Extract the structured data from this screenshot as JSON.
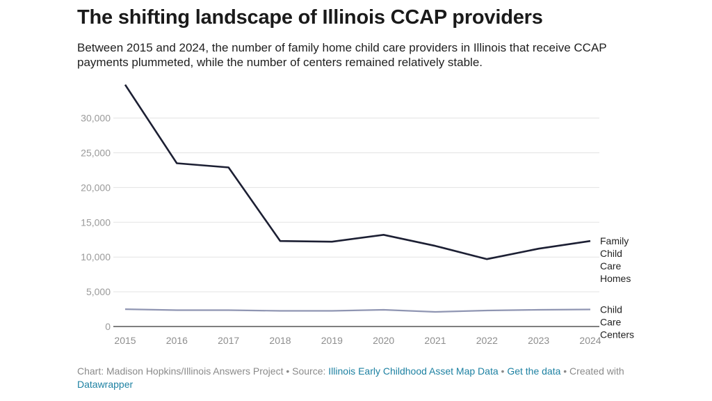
{
  "chart_data": {
    "type": "line",
    "title": "The shifting landscape of Illinois CCAP providers",
    "subtitle": "Between 2015 and 2024, the number of family home child care providers in Illinois that receive CCAP payments plummeted, while the number of centers remained relatively stable.",
    "x": [
      "2015",
      "2016",
      "2017",
      "2018",
      "2019",
      "2020",
      "2021",
      "2022",
      "2023",
      "2024"
    ],
    "yticks": [
      0,
      5000,
      10000,
      15000,
      20000,
      25000,
      30000
    ],
    "ytick_labels": [
      "0",
      "5,000",
      "10,000",
      "15,000",
      "20,000",
      "25,000",
      "30,000"
    ],
    "ylim": [
      0,
      35000
    ],
    "xlabel": "",
    "ylabel": "",
    "grid": true,
    "series": [
      {
        "name": "Family Child Care Homes",
        "label_lines": [
          "Family",
          "Child",
          "Care",
          "Homes"
        ],
        "color": "#1c1f33",
        "values": [
          34800,
          23500,
          22900,
          12300,
          12200,
          13200,
          11600,
          9700,
          11200,
          12300
        ]
      },
      {
        "name": "Child Care Centers",
        "label_lines": [
          "Child",
          "Care",
          "Centers"
        ],
        "color": "#8f95b2",
        "values": [
          2500,
          2350,
          2350,
          2250,
          2250,
          2400,
          2100,
          2300,
          2400,
          2450
        ]
      }
    ]
  },
  "footer": {
    "prefix": "Chart: Madison Hopkins/Illinois Answers Project • Source: ",
    "source_link": "Illinois Early Childhood Asset Map Data",
    "sep": " • ",
    "get_data_link": "Get the data",
    "created": " • Created with ",
    "tool_link": "Datawrapper"
  }
}
